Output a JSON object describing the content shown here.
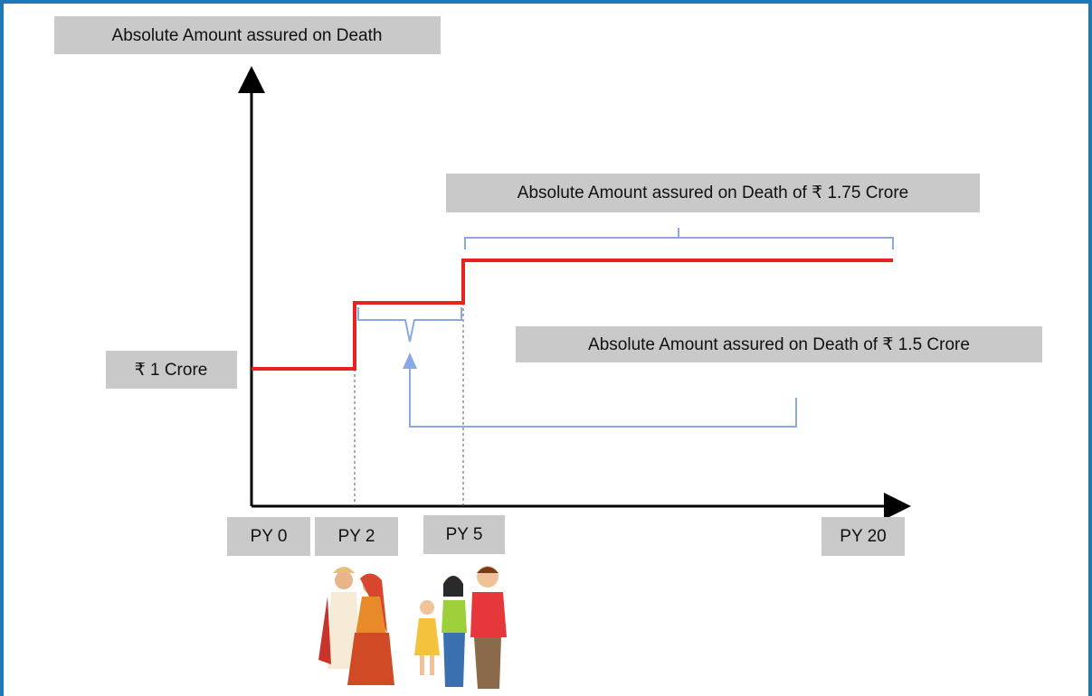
{
  "header": {
    "title": "Absolute Amount assured on Death"
  },
  "annotations": [
    {
      "label": "Absolute Amount assured on Death of ₹ 1.75 Crore"
    },
    {
      "label": "Absolute Amount assured on Death of ₹ 1.5 Crore"
    }
  ],
  "start_label": "₹ 1 Crore",
  "x_labels": [
    "PY 0",
    "PY 2",
    "PY 5",
    "PY 20"
  ]
}
